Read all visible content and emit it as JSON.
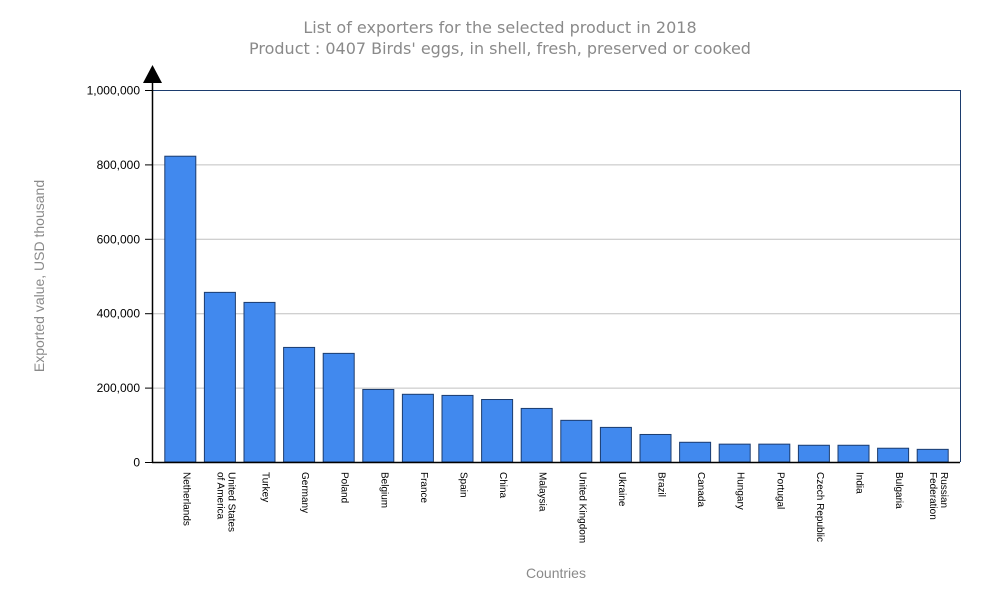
{
  "chart_data": {
    "type": "bar",
    "title": "List of exporters for the selected product in 2018",
    "subtitle": "Product : 0407 Birds' eggs, in shell, fresh, preserved or cooked",
    "xlabel": "Countries",
    "ylabel": "Exported value, USD thousand",
    "ylim": [
      0,
      1000000
    ],
    "yticks": [
      0,
      200000,
      400000,
      600000,
      800000,
      1000000
    ],
    "ytick_labels": [
      "0",
      "200,000",
      "400,000",
      "600,000",
      "800,000",
      "1,000,000"
    ],
    "grid": true,
    "bar_color": "#4189ee",
    "bar_edge_color": "#1c3c6e",
    "categories": [
      [
        "Netherlands"
      ],
      [
        "United States",
        "of America"
      ],
      [
        "Turkey"
      ],
      [
        "Germany"
      ],
      [
        "Poland"
      ],
      [
        "Belgium"
      ],
      [
        "France"
      ],
      [
        "Spain"
      ],
      [
        "China"
      ],
      [
        "Malaysia"
      ],
      [
        "United Kingdom"
      ],
      [
        "Ukraine"
      ],
      [
        "Brazil"
      ],
      [
        "Canada"
      ],
      [
        "Hungary"
      ],
      [
        "Portugal"
      ],
      [
        "Czech Republic"
      ],
      [
        "India"
      ],
      [
        "Bulgaria"
      ],
      [
        "Russian",
        "Federation"
      ]
    ],
    "values": [
      822000,
      456000,
      429000,
      308000,
      292000,
      195000,
      182000,
      179000,
      168000,
      144000,
      112000,
      93000,
      74000,
      53000,
      48000,
      48000,
      45000,
      45000,
      37000,
      34000
    ]
  }
}
